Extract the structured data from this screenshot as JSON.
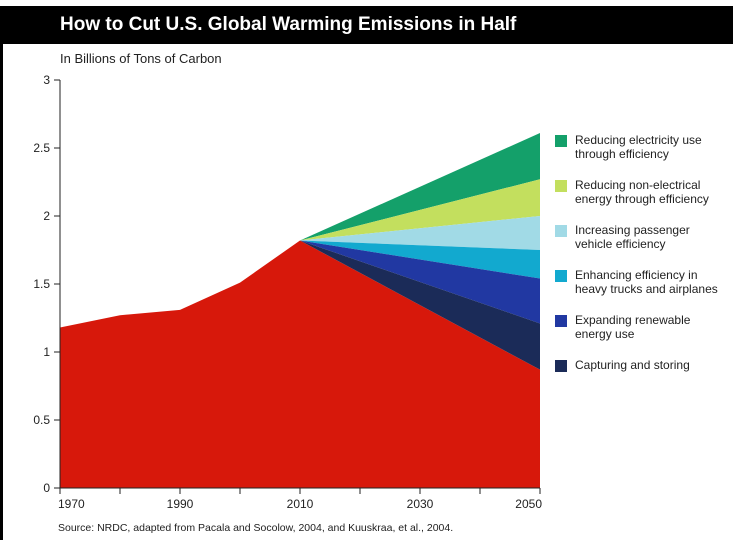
{
  "title": "How to Cut U.S. Global Warming Emissions in Half",
  "subtitle": "In Billions of Tons of Carbon",
  "source": "Source: NRDC, adapted from Pacala and Socolow, 2004, and Kuuskraa, et al., 2004.",
  "chart_data": {
    "type": "area",
    "title": "How to Cut U.S. Global Warming Emissions in Half",
    "ylabel": "In Billions of Tons of Carbon",
    "xlabel": "",
    "xlim": [
      1970,
      2050
    ],
    "ylim": [
      0,
      3
    ],
    "x_ticks": [
      1970,
      1990,
      2010,
      2030,
      2050
    ],
    "x_minor_ticks": [
      1980,
      2000,
      2020,
      2040
    ],
    "y_ticks": [
      0,
      0.5,
      1,
      1.5,
      2,
      2.5,
      3
    ],
    "y_tick_labels": [
      "0",
      "0.5",
      "1",
      "1.5",
      "2",
      "2.5",
      "3"
    ],
    "grid": false,
    "legend_position": "right",
    "emissions": {
      "x": [
        1970,
        1980,
        1990,
        2000,
        2010,
        2050
      ],
      "y": [
        1.18,
        1.27,
        1.31,
        1.51,
        1.82,
        0.87
      ],
      "color": "#d7180b"
    },
    "wedges": {
      "start": [
        2010,
        1.82
      ],
      "end_x": 2050,
      "items": [
        {
          "name": "Reducing electricity use\nthrough efficiency",
          "lower": 2.27,
          "upper": 2.61,
          "color": "#14a06a"
        },
        {
          "name": "Reducing non-electrical\nenergy through efficiency",
          "lower": 2.0,
          "upper": 2.27,
          "color": "#c3df5e"
        },
        {
          "name": "Increasing passenger\nvehicle efficiency",
          "lower": 1.75,
          "upper": 2.0,
          "color": "#a1dae6"
        },
        {
          "name": "Enhancing efficiency in\nheavy trucks and airplanes",
          "lower": 1.54,
          "upper": 1.75,
          "color": "#12a9cf"
        },
        {
          "name": "Expanding renewable\nenergy use",
          "lower": 1.21,
          "upper": 1.54,
          "color": "#2138a2"
        },
        {
          "name": "Capturing and storing",
          "lower": 0.87,
          "upper": 1.21,
          "color": "#1b2b58"
        }
      ]
    }
  }
}
